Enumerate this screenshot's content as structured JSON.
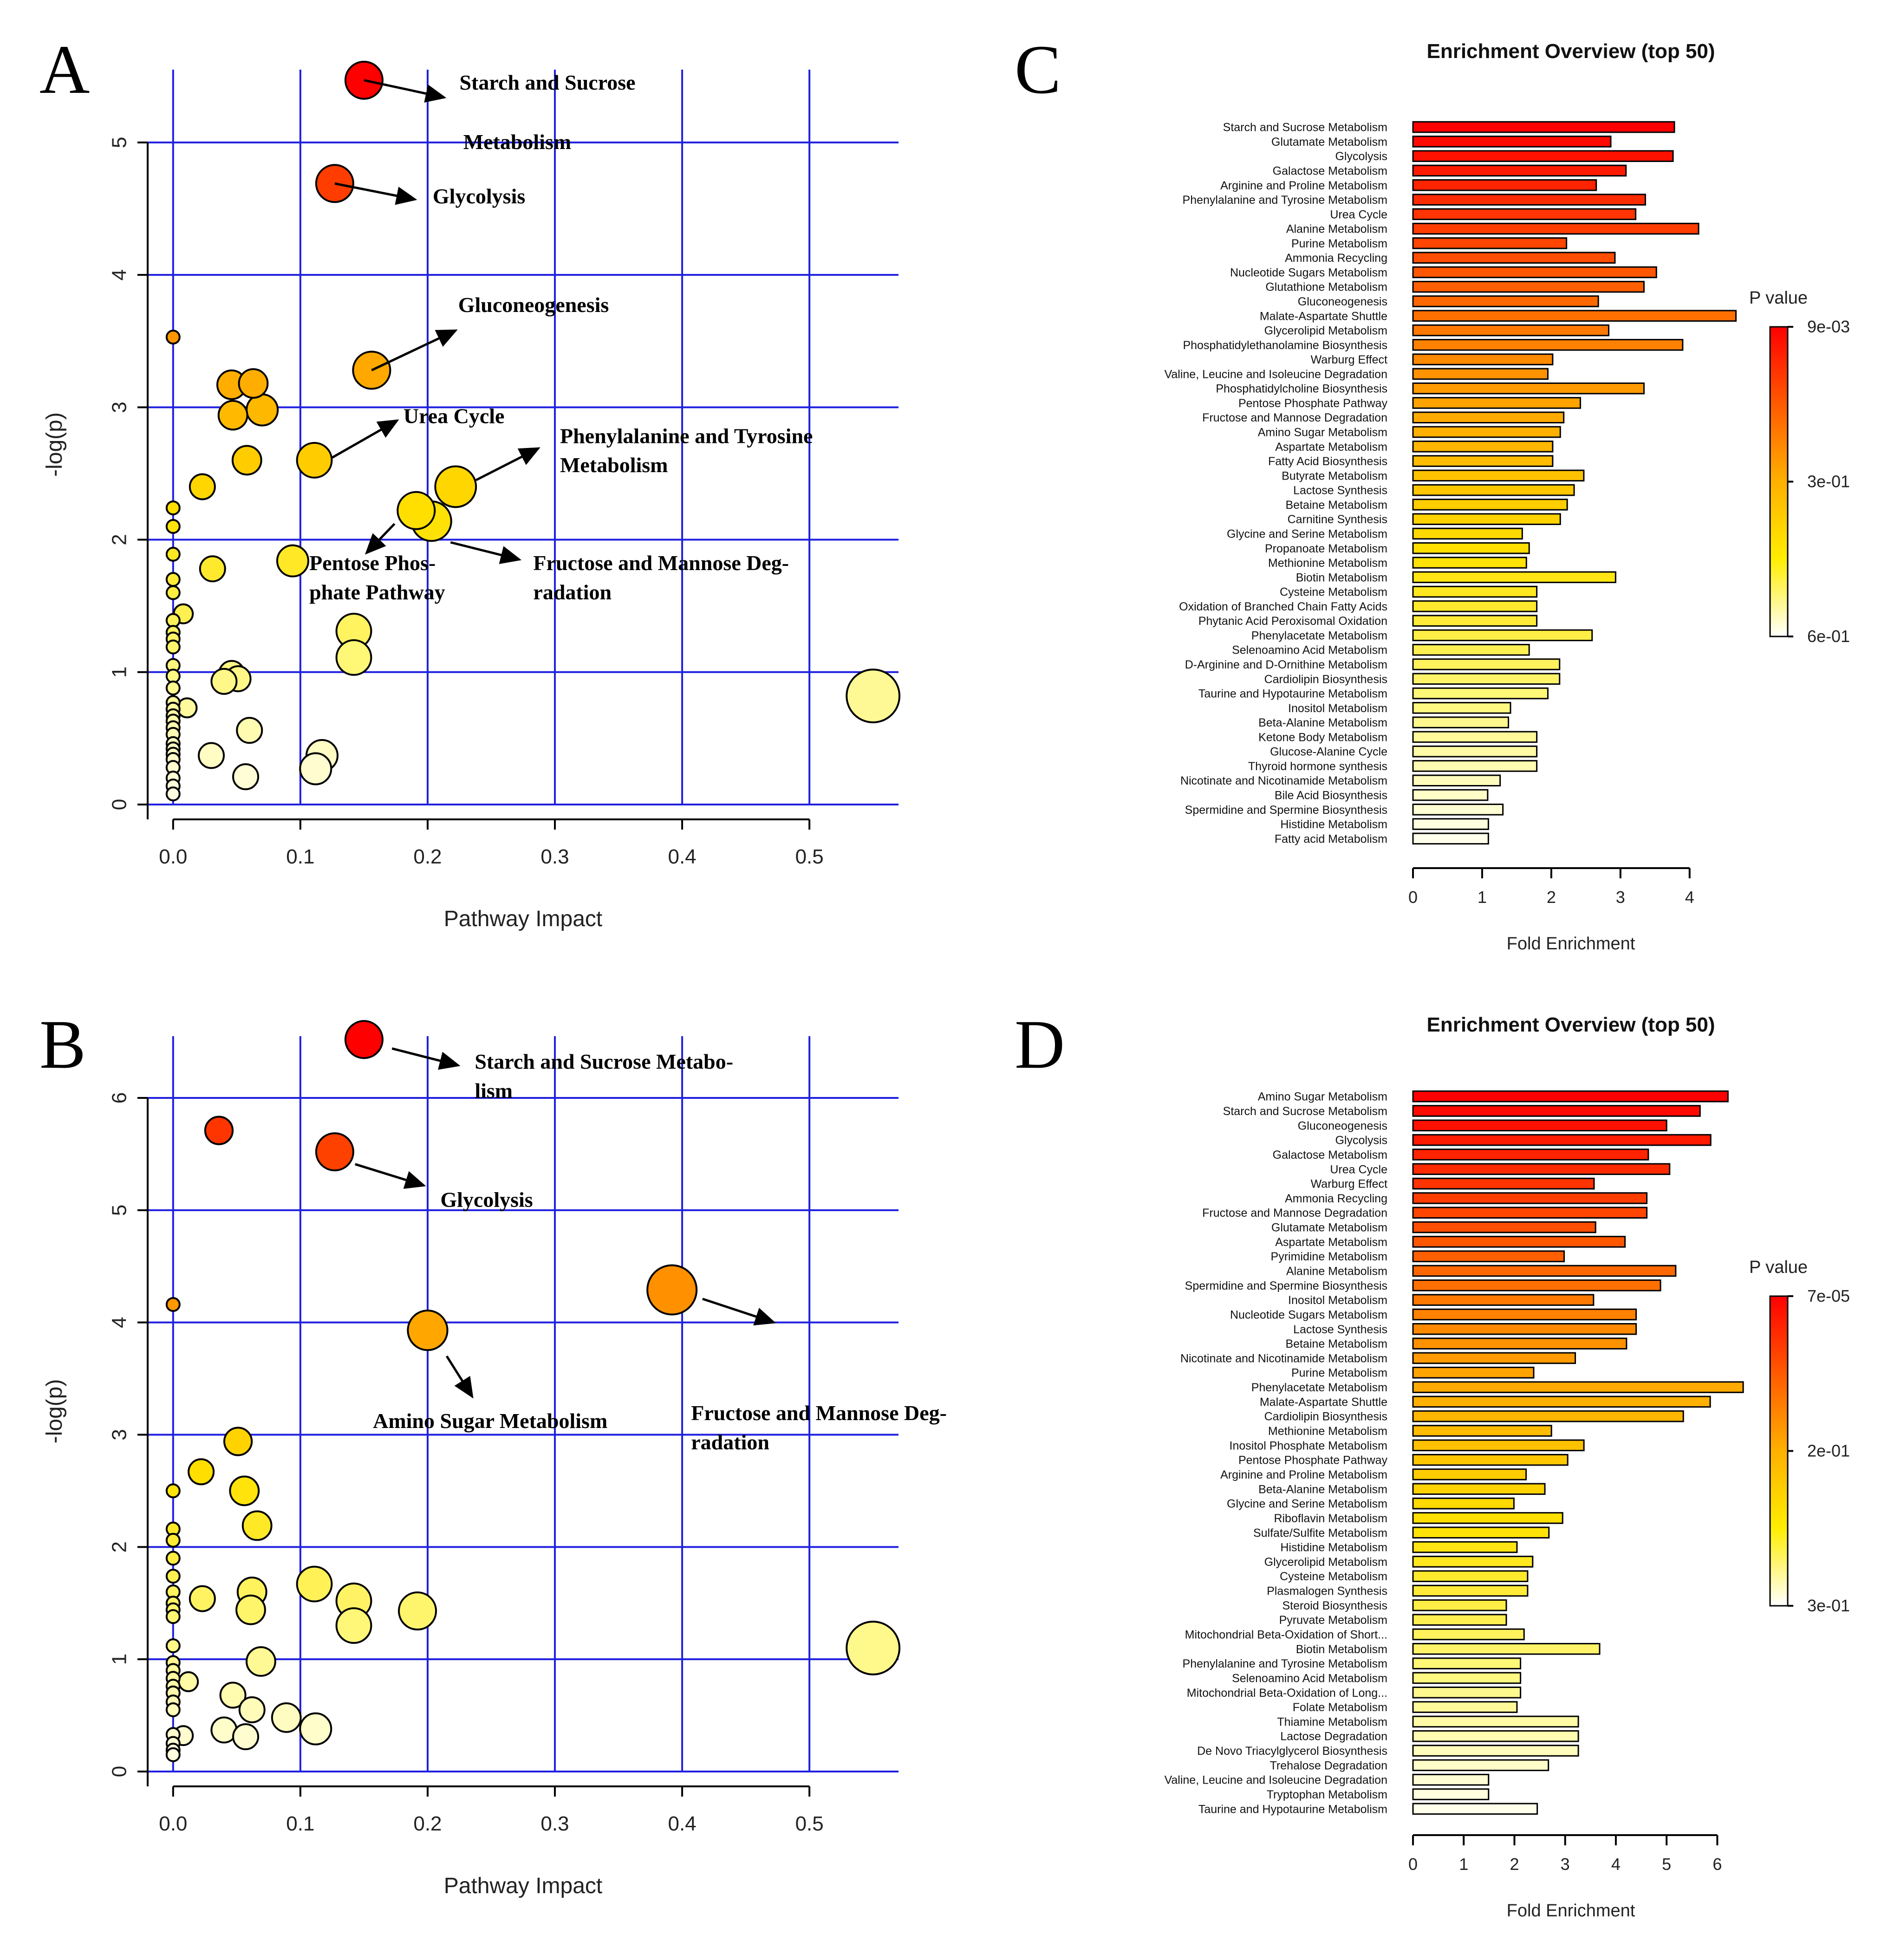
{
  "panels": {
    "a": "A",
    "b": "B",
    "c": "C",
    "d": "D"
  },
  "chart_data": [
    {
      "panel": "A",
      "type": "scatter",
      "xlabel": "Pathway Impact",
      "ylabel": "-log(p)",
      "xlim": [
        -0.02,
        0.57
      ],
      "ylim": [
        0,
        5.55
      ],
      "xticks": [
        0.0,
        0.1,
        0.2,
        0.3,
        0.4,
        0.5
      ],
      "yticks": [
        0,
        1,
        2,
        3,
        4,
        5
      ],
      "grid": true,
      "color_scale": "red (high -log p) to white (low)",
      "points": [
        {
          "x": 0.15,
          "y": 5.47,
          "size": 3.0
        },
        {
          "x": 0.127,
          "y": 4.69,
          "size": 3.0
        },
        {
          "x": 0.156,
          "y": 3.28,
          "size": 3.0
        },
        {
          "x": 0.0,
          "y": 3.53,
          "size": 1.0
        },
        {
          "x": 0.046,
          "y": 3.17,
          "size": 2.3
        },
        {
          "x": 0.063,
          "y": 3.18,
          "size": 2.3
        },
        {
          "x": 0.047,
          "y": 2.94,
          "size": 2.3
        },
        {
          "x": 0.07,
          "y": 2.98,
          "size": 2.5
        },
        {
          "x": 0.058,
          "y": 2.6,
          "size": 2.3
        },
        {
          "x": 0.111,
          "y": 2.6,
          "size": 2.8
        },
        {
          "x": 0.222,
          "y": 2.4,
          "size": 3.3
        },
        {
          "x": 0.023,
          "y": 2.4,
          "size": 2.0
        },
        {
          "x": 0.191,
          "y": 2.22,
          "size": 3.0
        },
        {
          "x": 0.203,
          "y": 2.14,
          "size": 3.2
        },
        {
          "x": 0.094,
          "y": 1.84,
          "size": 2.5
        },
        {
          "x": 0.031,
          "y": 1.78,
          "size": 2.0
        },
        {
          "x": 0.0,
          "y": 2.24,
          "size": 1.0
        },
        {
          "x": 0.0,
          "y": 2.1,
          "size": 1.0
        },
        {
          "x": 0.0,
          "y": 1.89,
          "size": 1.0
        },
        {
          "x": 0.0,
          "y": 1.7,
          "size": 1.0
        },
        {
          "x": 0.0,
          "y": 1.6,
          "size": 1.0
        },
        {
          "x": 0.008,
          "y": 1.44,
          "size": 1.5
        },
        {
          "x": 0.0,
          "y": 1.39,
          "size": 1.0
        },
        {
          "x": 0.0,
          "y": 1.3,
          "size": 1.0
        },
        {
          "x": 0.0,
          "y": 1.25,
          "size": 1.0
        },
        {
          "x": 0.0,
          "y": 1.19,
          "size": 1.0
        },
        {
          "x": 0.142,
          "y": 1.31,
          "size": 2.8
        },
        {
          "x": 0.142,
          "y": 1.11,
          "size": 2.8
        },
        {
          "x": 0.0,
          "y": 1.05,
          "size": 1.0
        },
        {
          "x": 0.046,
          "y": 0.99,
          "size": 2.0
        },
        {
          "x": 0.051,
          "y": 0.95,
          "size": 2.0
        },
        {
          "x": 0.04,
          "y": 0.93,
          "size": 2.0
        },
        {
          "x": 0.0,
          "y": 0.97,
          "size": 1.0
        },
        {
          "x": 0.0,
          "y": 0.88,
          "size": 1.0
        },
        {
          "x": 0.0,
          "y": 0.77,
          "size": 1.0
        },
        {
          "x": 0.0,
          "y": 0.72,
          "size": 1.0
        },
        {
          "x": 0.011,
          "y": 0.73,
          "size": 1.5
        },
        {
          "x": 0.0,
          "y": 0.67,
          "size": 1.0
        },
        {
          "x": 0.0,
          "y": 0.63,
          "size": 1.0
        },
        {
          "x": 0.0,
          "y": 0.58,
          "size": 1.0
        },
        {
          "x": 0.0,
          "y": 0.53,
          "size": 1.0
        },
        {
          "x": 0.06,
          "y": 0.56,
          "size": 2.0
        },
        {
          "x": 0.0,
          "y": 0.46,
          "size": 1.0
        },
        {
          "x": 0.0,
          "y": 0.42,
          "size": 1.0
        },
        {
          "x": 0.0,
          "y": 0.38,
          "size": 1.0
        },
        {
          "x": 0.0,
          "y": 0.34,
          "size": 1.0
        },
        {
          "x": 0.0,
          "y": 0.28,
          "size": 1.0
        },
        {
          "x": 0.0,
          "y": 0.2,
          "size": 1.0
        },
        {
          "x": 0.0,
          "y": 0.14,
          "size": 1.0
        },
        {
          "x": 0.0,
          "y": 0.08,
          "size": 1.0
        },
        {
          "x": 0.03,
          "y": 0.37,
          "size": 2.0
        },
        {
          "x": 0.117,
          "y": 0.37,
          "size": 2.5
        },
        {
          "x": 0.112,
          "y": 0.27,
          "size": 2.5
        },
        {
          "x": 0.057,
          "y": 0.21,
          "size": 2.0
        },
        {
          "x": 0.55,
          "y": 0.82,
          "size": 4.3
        }
      ],
      "annotations": [
        {
          "label": "Starch and Sucrose",
          "label2": "Metabolism",
          "pos": [
            0.225,
            5.4
          ],
          "line2": [
            0.228,
            4.95
          ],
          "from": [
            0.15,
            5.47
          ],
          "to": [
            0.213,
            5.34
          ]
        },
        {
          "label": "Glycolysis",
          "pos": [
            0.204,
            4.54
          ],
          "from": [
            0.127,
            4.69
          ],
          "to": [
            0.19,
            4.57
          ]
        },
        {
          "label": "Gluconeogenesis",
          "pos": [
            0.224,
            3.72
          ],
          "from": [
            0.156,
            3.28
          ],
          "to": [
            0.222,
            3.58
          ]
        },
        {
          "label": "Urea Cycle",
          "pos": [
            0.181,
            2.88
          ],
          "from": [
            0.125,
            2.62
          ],
          "to": [
            0.176,
            2.9
          ]
        },
        {
          "label": "Phenylalanine and Tyrosine",
          "label2": "Metabolism",
          "pos": [
            0.304,
            2.73
          ],
          "line2": [
            0.304,
            2.51
          ],
          "from": [
            0.238,
            2.45
          ],
          "to": [
            0.287,
            2.69
          ]
        },
        {
          "label": "Pentose Phos-",
          "label2": "phate Pathway",
          "pos": [
            0.107,
            1.77
          ],
          "line2": [
            0.107,
            1.55
          ],
          "from": [
            0.174,
            2.12
          ],
          "to": [
            0.152,
            1.9
          ]
        },
        {
          "label": "Fructose and Mannose Deg-",
          "label2": "radation",
          "pos": [
            0.283,
            1.77
          ],
          "line2": [
            0.283,
            1.55
          ],
          "from": [
            0.218,
            1.98
          ],
          "to": [
            0.272,
            1.85
          ]
        }
      ]
    },
    {
      "panel": "B",
      "type": "scatter",
      "xlabel": "Pathway Impact",
      "ylabel": "-log(p)",
      "xlim": [
        -0.02,
        0.57
      ],
      "ylim": [
        0,
        6.55
      ],
      "xticks": [
        0.0,
        0.1,
        0.2,
        0.3,
        0.4,
        0.5
      ],
      "yticks": [
        0,
        1,
        2,
        3,
        4,
        5,
        6
      ],
      "grid": true,
      "color_scale": "red (high -log p) to white (low)",
      "points": [
        {
          "x": 0.15,
          "y": 6.52,
          "size": 3.0
        },
        {
          "x": 0.036,
          "y": 5.71,
          "size": 2.2
        },
        {
          "x": 0.127,
          "y": 5.52,
          "size": 3.0
        },
        {
          "x": 0.392,
          "y": 4.29,
          "size": 4.0
        },
        {
          "x": 0.0,
          "y": 4.16,
          "size": 1.0
        },
        {
          "x": 0.2,
          "y": 3.93,
          "size": 3.2
        },
        {
          "x": 0.051,
          "y": 2.94,
          "size": 2.2
        },
        {
          "x": 0.022,
          "y": 2.67,
          "size": 2.0
        },
        {
          "x": 0.0,
          "y": 2.5,
          "size": 1.0
        },
        {
          "x": 0.056,
          "y": 2.5,
          "size": 2.3
        },
        {
          "x": 0.066,
          "y": 2.19,
          "size": 2.3
        },
        {
          "x": 0.0,
          "y": 2.16,
          "size": 1.0
        },
        {
          "x": 0.0,
          "y": 2.06,
          "size": 1.0
        },
        {
          "x": 0.0,
          "y": 1.9,
          "size": 1.0
        },
        {
          "x": 0.0,
          "y": 1.74,
          "size": 1.0
        },
        {
          "x": 0.111,
          "y": 1.67,
          "size": 2.8
        },
        {
          "x": 0.062,
          "y": 1.6,
          "size": 2.3
        },
        {
          "x": 0.0,
          "y": 1.6,
          "size": 1.0
        },
        {
          "x": 0.023,
          "y": 1.54,
          "size": 2.0
        },
        {
          "x": 0.0,
          "y": 1.5,
          "size": 1.0
        },
        {
          "x": 0.142,
          "y": 1.52,
          "size": 2.8
        },
        {
          "x": 0.0,
          "y": 1.44,
          "size": 1.0
        },
        {
          "x": 0.061,
          "y": 1.44,
          "size": 2.3
        },
        {
          "x": 0.192,
          "y": 1.43,
          "size": 3.0
        },
        {
          "x": 0.0,
          "y": 1.38,
          "size": 1.0
        },
        {
          "x": 0.142,
          "y": 1.3,
          "size": 2.8
        },
        {
          "x": 0.0,
          "y": 1.12,
          "size": 1.0
        },
        {
          "x": 0.069,
          "y": 0.98,
          "size": 2.3
        },
        {
          "x": 0.0,
          "y": 0.97,
          "size": 1.0
        },
        {
          "x": 0.0,
          "y": 0.9,
          "size": 1.0
        },
        {
          "x": 0.0,
          "y": 0.83,
          "size": 1.0
        },
        {
          "x": 0.012,
          "y": 0.8,
          "size": 1.5
        },
        {
          "x": 0.0,
          "y": 0.76,
          "size": 1.0
        },
        {
          "x": 0.0,
          "y": 0.7,
          "size": 1.0
        },
        {
          "x": 0.047,
          "y": 0.68,
          "size": 2.0
        },
        {
          "x": 0.0,
          "y": 0.62,
          "size": 1.0
        },
        {
          "x": 0.0,
          "y": 0.55,
          "size": 1.0
        },
        {
          "x": 0.062,
          "y": 0.55,
          "size": 2.0
        },
        {
          "x": 0.089,
          "y": 0.48,
          "size": 2.3
        },
        {
          "x": 0.112,
          "y": 0.38,
          "size": 2.5
        },
        {
          "x": 0.04,
          "y": 0.37,
          "size": 2.0
        },
        {
          "x": 0.0,
          "y": 0.33,
          "size": 1.0
        },
        {
          "x": 0.008,
          "y": 0.32,
          "size": 1.5
        },
        {
          "x": 0.057,
          "y": 0.31,
          "size": 2.0
        },
        {
          "x": 0.0,
          "y": 0.25,
          "size": 1.0
        },
        {
          "x": 0.0,
          "y": 0.19,
          "size": 1.0
        },
        {
          "x": 0.0,
          "y": 0.15,
          "size": 1.0
        },
        {
          "x": 0.55,
          "y": 1.1,
          "size": 4.3
        }
      ],
      "annotations": [
        {
          "label": "Starch and Sucrose Metabo-",
          "label2": "lism",
          "pos": [
            0.237,
            6.26
          ],
          "line2": [
            0.237,
            6.0
          ],
          "from": [
            0.172,
            6.44
          ],
          "to": [
            0.224,
            6.29
          ]
        },
        {
          "label": "Glycolysis",
          "pos": [
            0.21,
            5.03
          ],
          "from": [
            0.143,
            5.41
          ],
          "to": [
            0.197,
            5.22
          ]
        },
        {
          "label": "Fructose and Mannose Deg-",
          "label2": "radation",
          "pos": [
            0.407,
            3.13
          ],
          "line2": [
            0.407,
            2.87
          ],
          "from": [
            0.416,
            4.21
          ],
          "to": [
            0.472,
            4.0
          ]
        },
        {
          "label": "Amino Sugar Metabolism",
          "pos": [
            0.157,
            3.06
          ],
          "from": [
            0.215,
            3.7
          ],
          "to": [
            0.235,
            3.34
          ]
        }
      ]
    },
    {
      "panel": "C",
      "type": "bar",
      "orientation": "horizontal",
      "title": "Enrichment Overview (top 50)",
      "xlabel": "Fold Enrichment",
      "xlim": [
        0,
        4.7
      ],
      "xticks": [
        0,
        1,
        2,
        3,
        4
      ],
      "legend_title": "P value",
      "legend_values": [
        "9e-03",
        "3e-01",
        "6e-01"
      ],
      "categories": [
        "Starch and Sucrose Metabolism",
        "Glutamate Metabolism",
        "Glycolysis",
        "Galactose Metabolism",
        "Arginine and Proline Metabolism",
        "Phenylalanine and Tyrosine Metabolism",
        "Urea Cycle",
        "Alanine Metabolism",
        "Purine Metabolism",
        "Ammonia Recycling",
        "Nucleotide Sugars Metabolism",
        "Glutathione Metabolism",
        "Gluconeogenesis",
        "Malate-Aspartate Shuttle",
        "Glycerolipid Metabolism",
        "Phosphatidylethanolamine Biosynthesis",
        "Warburg Effect",
        "Valine, Leucine and Isoleucine Degradation",
        "Phosphatidylcholine Biosynthesis",
        "Pentose Phosphate Pathway",
        "Fructose and Mannose Degradation",
        "Amino Sugar Metabolism",
        "Aspartate Metabolism",
        "Fatty Acid Biosynthesis",
        "Butyrate Metabolism",
        "Lactose Synthesis",
        "Betaine Metabolism",
        "Carnitine Synthesis",
        "Glycine and Serine Metabolism",
        "Propanoate Metabolism",
        "Methionine Metabolism",
        "Biotin Metabolism",
        "Cysteine Metabolism",
        "Oxidation of Branched Chain Fatty Acids",
        "Phytanic Acid Peroxisomal Oxidation",
        "Phenylacetate Metabolism",
        "Selenoamino Acid Metabolism",
        "D-Arginine and D-Ornithine Metabolism",
        "Cardiolipin Biosynthesis",
        "Taurine and Hypotaurine Metabolism",
        "Inositol Metabolism",
        "Beta-Alanine Metabolism",
        "Ketone Body Metabolism",
        "Glucose-Alanine Cycle",
        "Thyroid hormone synthesis",
        "Nicotinate and Nicotinamide Metabolism",
        "Bile Acid Biosynthesis",
        "Spermidine and Spermine Biosynthesis",
        "Histidine Metabolism",
        "Fatty acid Metabolism"
      ],
      "values": [
        3.78,
        2.86,
        3.76,
        3.08,
        2.65,
        3.36,
        3.22,
        4.13,
        2.22,
        2.92,
        3.52,
        3.34,
        2.68,
        4.67,
        2.83,
        3.9,
        2.02,
        1.95,
        3.34,
        2.42,
        2.18,
        2.13,
        2.02,
        2.02,
        2.47,
        2.33,
        2.23,
        2.13,
        1.58,
        1.68,
        1.64,
        2.93,
        1.79,
        1.79,
        1.79,
        2.59,
        1.68,
        2.12,
        2.12,
        1.95,
        1.41,
        1.38,
        1.79,
        1.79,
        1.79,
        1.26,
        1.08,
        1.3,
        1.09,
        1.09
      ]
    },
    {
      "panel": "D",
      "type": "bar",
      "orientation": "horizontal",
      "title": "Enrichment Overview (top 50)",
      "xlabel": "Fold Enrichment",
      "xlim": [
        0,
        6.5
      ],
      "xticks": [
        0,
        1,
        2,
        3,
        4,
        5,
        6
      ],
      "legend_title": "P value",
      "legend_values": [
        "7e-05",
        "2e-01",
        "3e-01"
      ],
      "categories": [
        "Amino Sugar Metabolism",
        "Starch and Sucrose Metabolism",
        "Gluconeogenesis",
        "Glycolysis",
        "Galactose Metabolism",
        "Urea Cycle",
        "Warburg Effect",
        "Ammonia Recycling",
        "Fructose and Mannose Degradation",
        "Glutamate Metabolism",
        "Aspartate Metabolism",
        "Pyrimidine Metabolism",
        "Alanine Metabolism",
        "Spermidine and Spermine Biosynthesis",
        "Inositol Metabolism",
        "Nucleotide Sugars Metabolism",
        "Lactose Synthesis",
        "Betaine Metabolism",
        "Nicotinate and Nicotinamide Metabolism",
        "Purine Metabolism",
        "Phenylacetate Metabolism",
        "Malate-Aspartate Shuttle",
        "Cardiolipin Biosynthesis",
        "Methionine Metabolism",
        "Inositol Phosphate Metabolism",
        "Pentose Phosphate Pathway",
        "Arginine and Proline Metabolism",
        "Beta-Alanine Metabolism",
        "Glycine and Serine Metabolism",
        "Riboflavin Metabolism",
        "Sulfate/Sulfite Metabolism",
        "Histidine Metabolism",
        "Glycerolipid Metabolism",
        "Cysteine Metabolism",
        "Plasmalogen Synthesis",
        "Steroid Biosynthesis",
        "Pyruvate Metabolism",
        "Mitochondrial Beta-Oxidation of Short...",
        "Biotin Metabolism",
        "Phenylalanine and Tyrosine Metabolism",
        "Selenoamino Acid Metabolism",
        "Mitochondrial Beta-Oxidation of Long...",
        "Folate Metabolism",
        "Thiamine Metabolism",
        "Lactose Degradation",
        "De Novo Triacylglycerol Biosynthesis",
        "Trehalose Degradation",
        "Valine, Leucine and Isoleucine Degradation",
        "Tryptophan Metabolism",
        "Taurine and Hypotaurine Metabolism"
      ],
      "values": [
        6.21,
        5.66,
        5.0,
        5.87,
        4.64,
        5.06,
        3.57,
        4.61,
        4.61,
        3.6,
        4.18,
        2.98,
        5.18,
        4.88,
        3.56,
        4.4,
        4.4,
        4.21,
        3.2,
        2.38,
        6.51,
        5.86,
        5.33,
        2.73,
        3.37,
        3.05,
        2.23,
        2.6,
        1.99,
        2.95,
        2.68,
        2.05,
        2.36,
        2.26,
        2.26,
        1.84,
        1.84,
        2.19,
        3.68,
        2.12,
        2.12,
        2.12,
        2.05,
        3.26,
        3.26,
        3.26,
        2.67,
        1.49,
        1.49,
        2.45
      ]
    }
  ]
}
